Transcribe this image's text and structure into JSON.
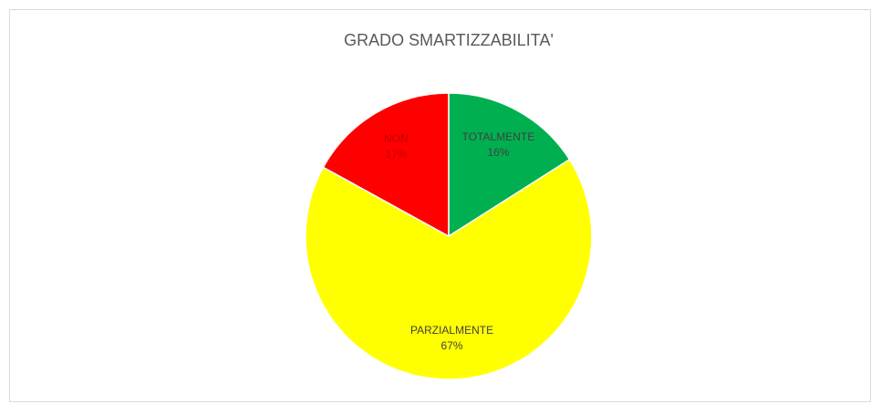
{
  "chart_data": {
    "type": "pie",
    "title": "GRADO SMARTIZZABILITA'",
    "categories": [
      "TOTALMENTE",
      "PARZIALMENTE",
      "NON"
    ],
    "values": [
      16,
      67,
      17
    ],
    "value_labels": [
      "16%",
      "67%",
      "17%"
    ],
    "colors": [
      "#00b050",
      "#ffff00",
      "#ff0000"
    ]
  }
}
